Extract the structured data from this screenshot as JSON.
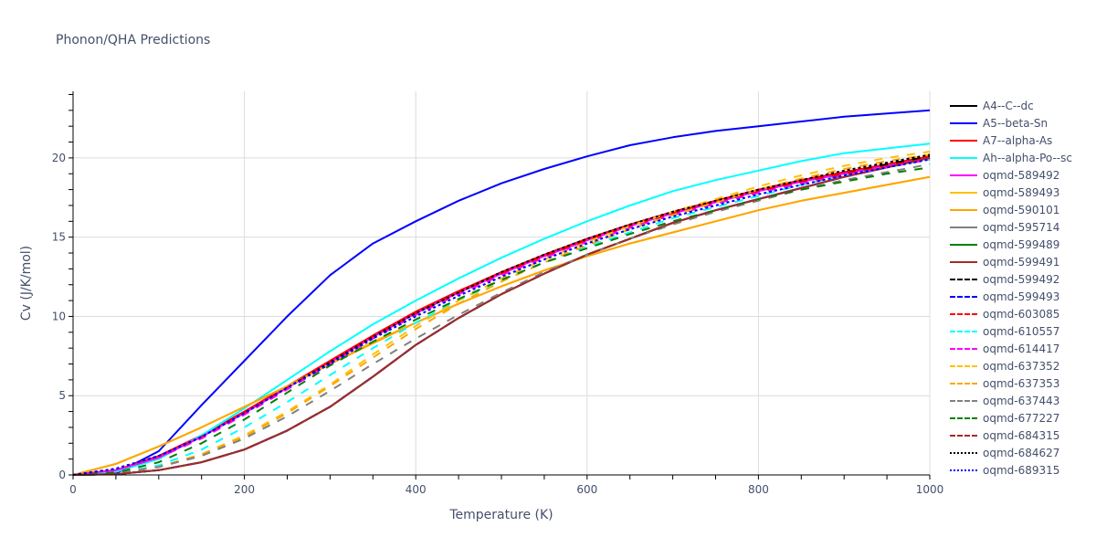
{
  "title": "Phonon/QHA Predictions",
  "chart_data": {
    "type": "line",
    "title": "Phonon/QHA Predictions",
    "xlabel": "Temperature (K)",
    "ylabel": "Cv (J/K/mol)",
    "xlim": [
      0,
      1000
    ],
    "ylim": [
      0,
      24.2
    ],
    "xticks": [
      0,
      200,
      400,
      600,
      800,
      1000
    ],
    "yticks": [
      0,
      5,
      10,
      15,
      20
    ],
    "grid": true,
    "legend_position": "right",
    "x": [
      0,
      50,
      100,
      150,
      200,
      250,
      300,
      350,
      400,
      450,
      500,
      550,
      600,
      650,
      700,
      750,
      800,
      850,
      900,
      950,
      1000
    ],
    "series": [
      {
        "name": "A4--C--dc",
        "color": "#000000",
        "dash": "solid",
        "values": [
          0,
          0.05,
          0.3,
          0.8,
          1.6,
          2.8,
          4.3,
          6.2,
          8.2,
          9.9,
          11.4,
          12.7,
          13.9,
          14.9,
          15.9,
          16.7,
          17.4,
          18.1,
          18.8,
          19.4,
          20.0
        ]
      },
      {
        "name": "A5--beta-Sn",
        "color": "#0000ff",
        "dash": "solid",
        "values": [
          0,
          0.1,
          1.5,
          4.4,
          7.2,
          10.0,
          12.6,
          14.6,
          16.0,
          17.3,
          18.4,
          19.3,
          20.1,
          20.8,
          21.3,
          21.7,
          22.0,
          22.3,
          22.6,
          22.8,
          23.0
        ]
      },
      {
        "name": "A7--alpha-As",
        "color": "#ff0000",
        "dash": "solid",
        "values": [
          0,
          0.3,
          1.2,
          2.5,
          4.0,
          5.6,
          7.2,
          8.8,
          10.3,
          11.6,
          12.8,
          13.9,
          14.9,
          15.8,
          16.6,
          17.3,
          18.0,
          18.6,
          19.1,
          19.6,
          20.1
        ]
      },
      {
        "name": "Ah--alpha-Po--sc",
        "color": "#00ffff",
        "dash": "solid",
        "values": [
          0,
          0.2,
          1.0,
          2.5,
          4.2,
          6.0,
          7.8,
          9.5,
          11.0,
          12.4,
          13.7,
          14.9,
          16.0,
          17.0,
          17.9,
          18.6,
          19.2,
          19.8,
          20.3,
          20.6,
          20.9
        ]
      },
      {
        "name": "oqmd-589492",
        "color": "#ff00ff",
        "dash": "solid",
        "values": [
          0,
          0.3,
          1.1,
          2.4,
          3.9,
          5.5,
          7.1,
          8.7,
          10.2,
          11.5,
          12.7,
          13.8,
          14.8,
          15.7,
          16.5,
          17.2,
          17.9,
          18.5,
          19.0,
          19.5,
          20.0
        ]
      },
      {
        "name": "oqmd-589493",
        "color": "#ffc000",
        "dash": "solid",
        "values": [
          0,
          0.7,
          1.8,
          3.0,
          4.3,
          5.6,
          7.0,
          8.4,
          9.6,
          10.8,
          11.9,
          12.9,
          13.8,
          14.6,
          15.3,
          16.0,
          16.7,
          17.3,
          17.8,
          18.3,
          18.8
        ]
      },
      {
        "name": "oqmd-590101",
        "color": "#ffa500",
        "dash": "solid",
        "values": [
          0,
          0.7,
          1.8,
          3.0,
          4.3,
          5.6,
          7.0,
          8.3,
          9.6,
          10.8,
          11.9,
          12.9,
          13.8,
          14.6,
          15.3,
          16.0,
          16.7,
          17.3,
          17.8,
          18.3,
          18.8
        ]
      },
      {
        "name": "oqmd-595714",
        "color": "#808080",
        "dash": "solid",
        "values": [
          0,
          0.05,
          0.3,
          0.8,
          1.6,
          2.8,
          4.3,
          6.2,
          8.2,
          9.9,
          11.4,
          12.7,
          13.9,
          14.9,
          15.9,
          16.7,
          17.4,
          18.1,
          18.8,
          19.4,
          20.0
        ]
      },
      {
        "name": "oqmd-599489",
        "color": "#008000",
        "dash": "solid",
        "values": [
          0,
          0.05,
          0.3,
          0.8,
          1.6,
          2.8,
          4.3,
          6.2,
          8.2,
          9.9,
          11.4,
          12.7,
          13.9,
          14.9,
          15.9,
          16.7,
          17.4,
          18.1,
          18.8,
          19.4,
          20.0
        ]
      },
      {
        "name": "oqmd-599491",
        "color": "#a52a2a",
        "dash": "solid",
        "values": [
          0,
          0.05,
          0.3,
          0.8,
          1.6,
          2.8,
          4.3,
          6.2,
          8.2,
          9.9,
          11.4,
          12.7,
          13.9,
          14.9,
          15.9,
          16.7,
          17.4,
          18.1,
          18.8,
          19.4,
          20.0
        ]
      },
      {
        "name": "oqmd-599492",
        "color": "#000000",
        "dash": "dash",
        "values": [
          0,
          0.3,
          1.1,
          2.4,
          3.9,
          5.5,
          7.1,
          8.7,
          10.2,
          11.5,
          12.7,
          13.8,
          14.8,
          15.7,
          16.5,
          17.2,
          17.9,
          18.5,
          19.0,
          19.6,
          20.1
        ]
      },
      {
        "name": "oqmd-599493",
        "color": "#0000ff",
        "dash": "dash",
        "values": [
          0,
          0.05,
          0.3,
          0.8,
          1.6,
          2.8,
          4.3,
          6.2,
          8.2,
          9.9,
          11.4,
          12.7,
          13.9,
          14.9,
          15.9,
          16.7,
          17.4,
          18.1,
          18.8,
          19.4,
          20.0
        ]
      },
      {
        "name": "oqmd-603085",
        "color": "#ff0000",
        "dash": "dash",
        "values": [
          0,
          0.3,
          1.1,
          2.4,
          3.9,
          5.5,
          7.1,
          8.7,
          10.2,
          11.5,
          12.7,
          13.8,
          14.8,
          15.7,
          16.5,
          17.2,
          17.9,
          18.5,
          19.0,
          19.5,
          20.0
        ]
      },
      {
        "name": "oqmd-610557",
        "color": "#00ffff",
        "dash": "dash",
        "values": [
          0,
          0.1,
          0.6,
          1.6,
          3.0,
          4.6,
          6.3,
          8.0,
          9.6,
          11.0,
          12.3,
          13.4,
          14.4,
          15.3,
          16.2,
          16.9,
          17.6,
          18.3,
          18.9,
          19.4,
          19.9
        ]
      },
      {
        "name": "oqmd-614417",
        "color": "#ff00ff",
        "dash": "dash",
        "values": [
          0,
          0.3,
          1.1,
          2.3,
          3.8,
          5.4,
          7.0,
          8.6,
          10.1,
          11.4,
          12.6,
          13.7,
          14.7,
          15.6,
          16.4,
          17.1,
          17.8,
          18.4,
          18.9,
          19.4,
          19.9
        ]
      },
      {
        "name": "oqmd-637352",
        "color": "#ffc000",
        "dash": "dash",
        "values": [
          0,
          0.1,
          0.5,
          1.3,
          2.5,
          4.0,
          5.7,
          7.6,
          9.4,
          11.0,
          12.4,
          13.6,
          14.7,
          15.7,
          16.6,
          17.4,
          18.2,
          18.9,
          19.5,
          20.0,
          20.4
        ]
      },
      {
        "name": "oqmd-637353",
        "color": "#ffa500",
        "dash": "dash",
        "values": [
          0,
          0.1,
          0.5,
          1.3,
          2.4,
          3.9,
          5.6,
          7.4,
          9.2,
          10.8,
          12.2,
          13.4,
          14.5,
          15.5,
          16.4,
          17.2,
          18.0,
          18.7,
          19.3,
          19.8,
          20.2
        ]
      },
      {
        "name": "oqmd-637443",
        "color": "#808080",
        "dash": "dash",
        "values": [
          0,
          0.1,
          0.5,
          1.2,
          2.3,
          3.7,
          5.3,
          7.0,
          8.6,
          10.1,
          11.5,
          12.8,
          13.9,
          14.9,
          15.8,
          16.6,
          17.3,
          18.0,
          18.6,
          19.1,
          19.6
        ]
      },
      {
        "name": "oqmd-677227",
        "color": "#008000",
        "dash": "dash",
        "values": [
          0,
          0.15,
          0.8,
          2.0,
          3.5,
          5.2,
          6.9,
          8.4,
          9.8,
          11.1,
          12.3,
          13.4,
          14.3,
          15.2,
          16.0,
          16.7,
          17.4,
          18.0,
          18.5,
          19.0,
          19.4
        ]
      },
      {
        "name": "oqmd-684315",
        "color": "#a52a2a",
        "dash": "dash",
        "values": [
          0,
          0.05,
          0.3,
          0.8,
          1.6,
          2.8,
          4.3,
          6.2,
          8.2,
          9.9,
          11.4,
          12.7,
          13.9,
          14.9,
          15.9,
          16.7,
          17.4,
          18.1,
          18.8,
          19.4,
          20.0
        ]
      },
      {
        "name": "oqmd-684627",
        "color": "#000000",
        "dash": "dot",
        "values": [
          0,
          0.4,
          1.2,
          2.4,
          3.9,
          5.5,
          7.1,
          8.7,
          10.2,
          11.5,
          12.8,
          13.9,
          14.9,
          15.8,
          16.6,
          17.3,
          18.0,
          18.6,
          19.2,
          19.7,
          20.2
        ]
      },
      {
        "name": "oqmd-689315",
        "color": "#0000ff",
        "dash": "dot",
        "values": [
          0,
          0.4,
          1.2,
          2.4,
          3.9,
          5.5,
          7.0,
          8.6,
          10.0,
          11.3,
          12.5,
          13.6,
          14.6,
          15.5,
          16.3,
          17.0,
          17.7,
          18.3,
          18.9,
          19.4,
          19.9
        ]
      }
    ]
  }
}
